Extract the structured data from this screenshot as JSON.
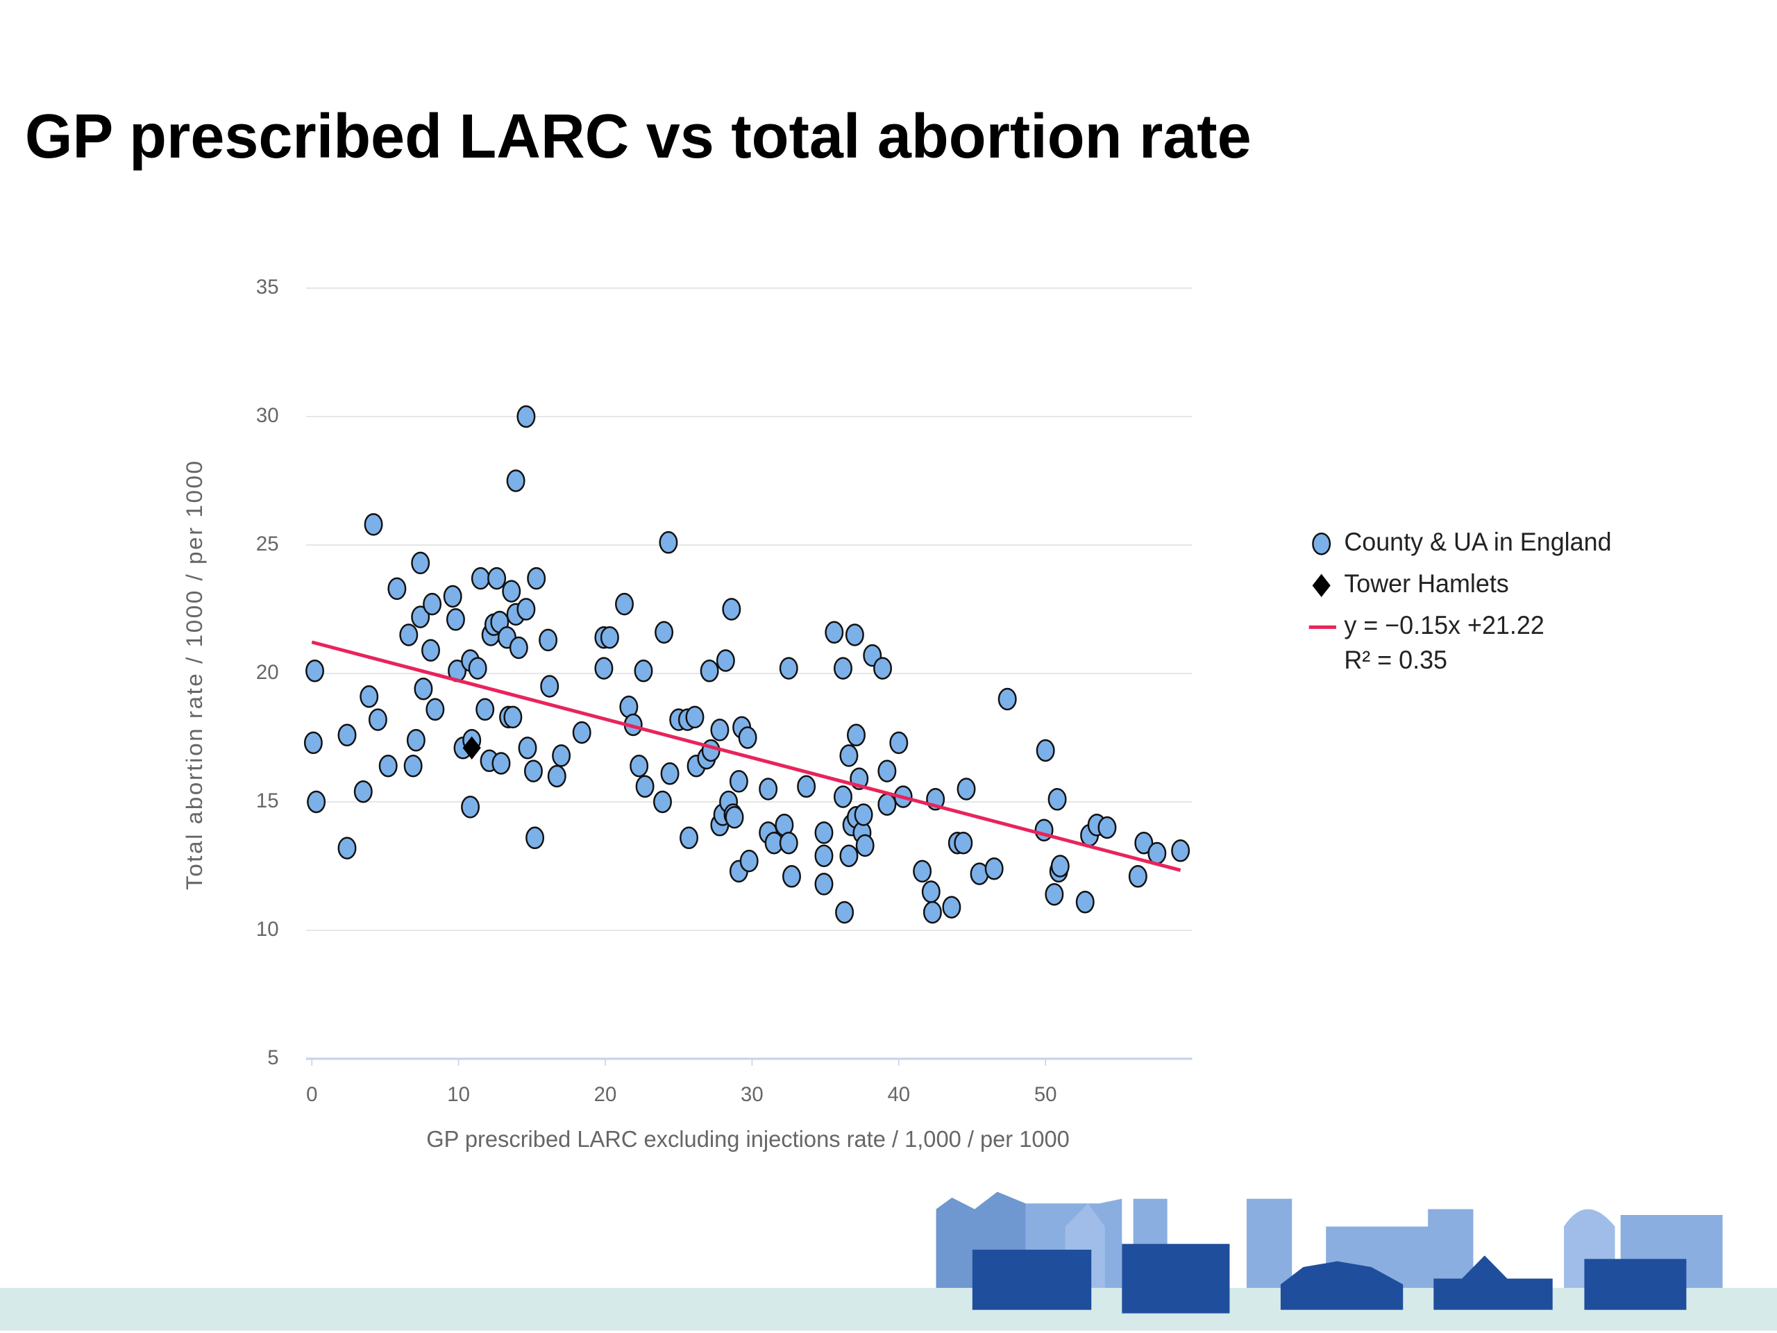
{
  "chart_data": {
    "type": "scatter",
    "title": "GP prescribed LARC vs total abortion rate",
    "xlabel": "GP prescribed LARC excluding injections rate / 1,000 / per 1000",
    "ylabel": "Total abortion rate / 1000 / per 1000",
    "xlim": [
      -0.4,
      60
    ],
    "ylim": [
      5,
      35
    ],
    "xticks": [
      0,
      10,
      20,
      30,
      40,
      50
    ],
    "yticks": [
      5,
      10,
      15,
      20,
      25,
      30,
      35
    ],
    "grid": true,
    "legend": "right",
    "series": [
      {
        "name": "County & UA in England",
        "color": "#7cb0e8",
        "marker": "circle",
        "x": [
          0.1,
          0.2,
          0.3,
          2.4,
          2.4,
          3.5,
          3.9,
          4.2,
          4.5,
          5.2,
          5.8,
          6.6,
          6.9,
          7.1,
          7.4,
          7.4,
          7.6,
          8.1,
          8.2,
          8.4,
          9.6,
          9.8,
          9.9,
          10.3,
          10.8,
          10.8,
          10.9,
          11.3,
          11.5,
          11.8,
          12.1,
          12.2,
          12.4,
          12.6,
          12.8,
          12.9,
          13.3,
          13.4,
          13.6,
          13.7,
          13.9,
          13.9,
          14.1,
          14.6,
          14.6,
          14.7,
          15.1,
          15.2,
          15.3,
          16.1,
          16.2,
          16.7,
          17.0,
          18.4,
          19.9,
          19.9,
          20.3,
          21.3,
          21.6,
          21.9,
          22.3,
          22.6,
          22.7,
          23.9,
          24.0,
          24.3,
          24.4,
          25.0,
          25.6,
          25.7,
          26.1,
          26.2,
          26.9,
          27.1,
          27.2,
          27.8,
          27.8,
          28.0,
          28.2,
          28.4,
          28.6,
          28.7,
          28.8,
          29.1,
          29.1,
          29.3,
          29.7,
          29.8,
          31.1,
          31.1,
          31.5,
          32.2,
          32.5,
          32.5,
          32.7,
          33.7,
          34.9,
          34.9,
          34.9,
          35.6,
          36.2,
          36.2,
          36.3,
          36.6,
          36.6,
          36.8,
          37.0,
          37.1,
          37.1,
          37.3,
          37.5,
          37.6,
          37.7,
          38.2,
          38.9,
          39.2,
          39.2,
          40.0,
          40.3,
          41.6,
          42.2,
          42.3,
          42.5,
          43.6,
          44.0,
          44.4,
          44.6,
          45.5,
          46.5,
          47.4,
          49.9,
          50.0,
          50.6,
          50.8,
          50.9,
          51.0,
          52.7,
          53.0,
          53.5,
          54.2,
          56.3,
          56.7,
          57.6,
          59.2
        ],
        "values": [
          17.3,
          20.1,
          15.0,
          13.2,
          17.6,
          15.4,
          19.1,
          25.8,
          18.2,
          16.4,
          23.3,
          21.5,
          16.4,
          17.4,
          24.3,
          22.2,
          19.4,
          20.9,
          22.7,
          18.6,
          23.0,
          22.1,
          20.1,
          17.1,
          20.5,
          14.8,
          17.4,
          20.2,
          23.7,
          18.6,
          16.6,
          21.5,
          21.9,
          23.7,
          22.0,
          16.5,
          21.4,
          18.3,
          23.2,
          18.3,
          27.5,
          22.3,
          21.0,
          30.0,
          22.5,
          17.1,
          16.2,
          13.6,
          23.7,
          21.3,
          19.5,
          16.0,
          16.8,
          17.7,
          20.2,
          21.4,
          21.4,
          22.7,
          18.7,
          18.0,
          16.4,
          20.1,
          15.6,
          15.0,
          21.6,
          25.1,
          16.1,
          18.2,
          18.2,
          13.6,
          18.3,
          16.4,
          16.7,
          20.1,
          17.0,
          17.8,
          14.1,
          14.5,
          20.5,
          15.0,
          22.5,
          14.5,
          14.4,
          15.8,
          12.3,
          17.9,
          17.5,
          12.7,
          15.5,
          13.8,
          13.4,
          14.1,
          20.2,
          13.4,
          12.1,
          15.6,
          13.8,
          12.9,
          11.8,
          21.6,
          20.2,
          15.2,
          10.7,
          16.8,
          12.9,
          14.1,
          21.5,
          17.6,
          14.4,
          15.9,
          13.8,
          14.5,
          13.3,
          20.7,
          20.2,
          16.2,
          14.9,
          17.3,
          15.2,
          12.3,
          11.5,
          10.7,
          15.1,
          10.9,
          13.4,
          13.4,
          15.5,
          12.2,
          12.4,
          19.0,
          13.9,
          17.0,
          11.4,
          15.1,
          12.3,
          12.5,
          11.1,
          13.7,
          14.1,
          14.0,
          12.1,
          13.4,
          13.0,
          13.1
        ]
      },
      {
        "name": "Tower Hamlets",
        "color": "#000000",
        "marker": "diamond",
        "x": [
          10.9
        ],
        "values": [
          17.1
        ]
      }
    ],
    "trendline": {
      "label": "y = −0.15x +21.22",
      "r2_label": "R² = 0.35",
      "slope": -0.15,
      "intercept": 21.22,
      "color": "#e8245a"
    }
  }
}
